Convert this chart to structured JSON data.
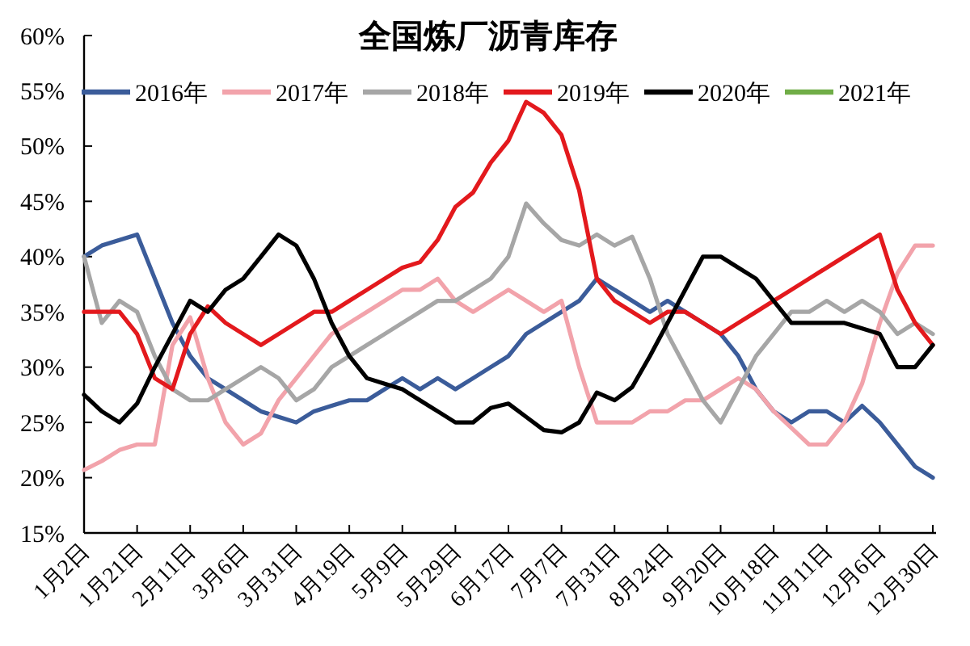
{
  "chart_data": {
    "type": "line",
    "title": "全国炼厂沥青库存",
    "categories": [
      "1月2日",
      null,
      null,
      "1月21日",
      null,
      null,
      "2月11日",
      null,
      null,
      "3月6日",
      null,
      null,
      "3月31日",
      null,
      null,
      "4月19日",
      null,
      null,
      "5月9日",
      null,
      null,
      "5月29日",
      null,
      null,
      "6月17日",
      null,
      null,
      "7月7日",
      null,
      null,
      "7月31日",
      null,
      null,
      "8月24日",
      null,
      null,
      "9月20日",
      null,
      null,
      "10月18日",
      null,
      null,
      "11月11日",
      null,
      null,
      "12月6日",
      null,
      null,
      "12月30日"
    ],
    "series": [
      {
        "name": "2016年",
        "color": "#3b5c9a",
        "values": [
          40,
          41,
          41.5,
          42,
          38,
          34,
          31,
          29,
          28,
          27,
          26,
          25.5,
          25,
          26,
          26.5,
          27,
          27,
          28,
          29,
          28,
          29,
          28,
          29,
          30,
          31,
          33,
          34,
          35,
          36,
          38,
          37,
          36,
          35,
          36,
          35,
          34,
          33,
          31,
          28,
          26,
          25,
          26,
          26,
          25,
          26.5,
          25,
          23,
          21,
          20
        ]
      },
      {
        "name": "2017年",
        "color": "#f2a3ab",
        "values": [
          20.7,
          21.5,
          22.5,
          23,
          23,
          32,
          34.5,
          29,
          25,
          23,
          24,
          27,
          29,
          31,
          33,
          34,
          35,
          36,
          37,
          37,
          38,
          36,
          35,
          36,
          37,
          36,
          35,
          36,
          30,
          25,
          25,
          25,
          26,
          26,
          27,
          27,
          28,
          29,
          28,
          26,
          24.5,
          23,
          23,
          25,
          28.5,
          34,
          38.5,
          41,
          41
        ]
      },
      {
        "name": "2018年",
        "color": "#a6a6a6",
        "values": [
          40,
          34,
          36,
          35,
          31,
          28,
          27,
          27,
          28,
          29,
          30,
          29,
          27,
          28,
          30,
          31,
          32,
          33,
          34,
          35,
          36,
          36,
          37,
          38,
          40,
          44.8,
          43,
          41.5,
          41,
          42,
          41,
          41.8,
          38,
          33,
          30,
          27,
          25,
          28,
          31,
          33,
          35,
          35,
          36,
          35,
          36,
          35,
          33,
          34,
          33
        ]
      },
      {
        "name": "2019年",
        "color": "#e3191d",
        "values": [
          35,
          35,
          35,
          33,
          29,
          28,
          33,
          35.5,
          34,
          33,
          32,
          33,
          34,
          35,
          35,
          36,
          37,
          38,
          39,
          39.5,
          41.5,
          44.5,
          45.8,
          48.5,
          50.5,
          54,
          53,
          51,
          46,
          38,
          36,
          35,
          34,
          35,
          35,
          34,
          33,
          34,
          35,
          36,
          37,
          38,
          39,
          40,
          41,
          42,
          37,
          34,
          32
        ]
      },
      {
        "name": "2020年",
        "color": "#000000",
        "values": [
          27.5,
          26,
          25,
          26.7,
          30,
          33,
          36,
          35,
          37,
          38,
          40,
          42,
          41,
          38,
          34,
          31,
          29,
          28.5,
          28,
          27,
          26,
          25,
          25,
          26.3,
          26.7,
          25.5,
          24.3,
          24.1,
          25,
          27.7,
          27,
          28.2,
          31,
          34,
          37,
          40,
          40,
          39,
          38,
          36,
          34,
          34,
          34,
          34,
          33.5,
          33,
          30,
          30,
          32
        ]
      },
      {
        "name": "2021年",
        "color": "#70ad47",
        "values": [
          null,
          null,
          null,
          null,
          null,
          null,
          null,
          null,
          null,
          null,
          null,
          null,
          null,
          null,
          null,
          null,
          null,
          null,
          null,
          null,
          null,
          null,
          null,
          null,
          null,
          null,
          null,
          null,
          null,
          null,
          null,
          null,
          null,
          null,
          null,
          null,
          null,
          null,
          null,
          null,
          null,
          null,
          null,
          null,
          null,
          null,
          null,
          null,
          null
        ]
      }
    ],
    "ylim": [
      15,
      60
    ],
    "yticks": [
      {
        "value": 15,
        "label": "15%"
      },
      {
        "value": 20,
        "label": "20%"
      },
      {
        "value": 25,
        "label": "25%"
      },
      {
        "value": 30,
        "label": "30%"
      },
      {
        "value": 35,
        "label": "35%"
      },
      {
        "value": 40,
        "label": "40%"
      },
      {
        "value": 45,
        "label": "45%"
      },
      {
        "value": 50,
        "label": "50%"
      },
      {
        "value": 55,
        "label": "55%"
      },
      {
        "value": 60,
        "label": "60%"
      }
    ],
    "legend": "top"
  }
}
